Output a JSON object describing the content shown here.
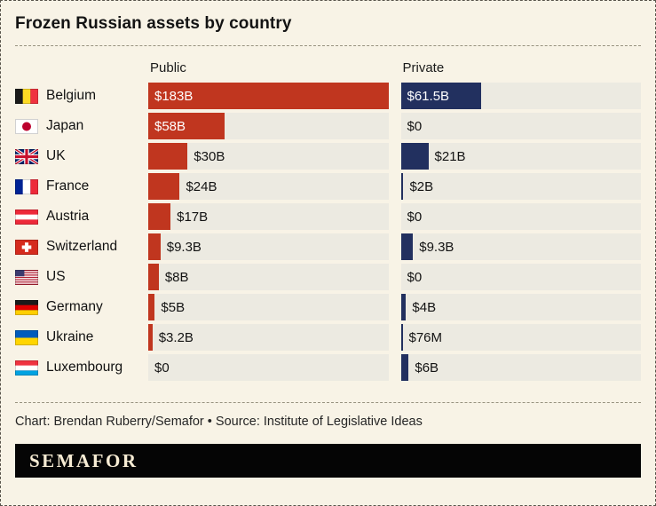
{
  "header": {
    "title": "Frozen Russian assets by country"
  },
  "chart_data": {
    "type": "bar",
    "orientation": "horizontal",
    "title": "Frozen Russian assets by country",
    "unit": "USD billions",
    "max_value_billions": 183,
    "columns": [
      {
        "key": "public",
        "label": "Public"
      },
      {
        "key": "private",
        "label": "Private"
      }
    ],
    "rows": [
      {
        "country": "Belgium",
        "flag_icon": "belgium-flag-icon",
        "public": {
          "value_billions": 183,
          "label": "$183B"
        },
        "private": {
          "value_billions": 61.5,
          "label": "$61.5B"
        }
      },
      {
        "country": "Japan",
        "flag_icon": "japan-flag-icon",
        "public": {
          "value_billions": 58,
          "label": "$58B"
        },
        "private": {
          "value_billions": 0,
          "label": "$0"
        }
      },
      {
        "country": "UK",
        "flag_icon": "uk-flag-icon",
        "public": {
          "value_billions": 30,
          "label": "$30B"
        },
        "private": {
          "value_billions": 21,
          "label": "$21B"
        }
      },
      {
        "country": "France",
        "flag_icon": "france-flag-icon",
        "public": {
          "value_billions": 24,
          "label": "$24B"
        },
        "private": {
          "value_billions": 2,
          "label": "$2B"
        }
      },
      {
        "country": "Austria",
        "flag_icon": "austria-flag-icon",
        "public": {
          "value_billions": 17,
          "label": "$17B"
        },
        "private": {
          "value_billions": 0,
          "label": "$0"
        }
      },
      {
        "country": "Switzerland",
        "flag_icon": "switzerland-flag-icon",
        "public": {
          "value_billions": 9.3,
          "label": "$9.3B"
        },
        "private": {
          "value_billions": 9.3,
          "label": "$9.3B"
        }
      },
      {
        "country": "US",
        "flag_icon": "us-flag-icon",
        "public": {
          "value_billions": 8,
          "label": "$8B"
        },
        "private": {
          "value_billions": 0,
          "label": "$0"
        }
      },
      {
        "country": "Germany",
        "flag_icon": "germany-flag-icon",
        "public": {
          "value_billions": 5,
          "label": "$5B"
        },
        "private": {
          "value_billions": 4,
          "label": "$4B"
        }
      },
      {
        "country": "Ukraine",
        "flag_icon": "ukraine-flag-icon",
        "public": {
          "value_billions": 3.2,
          "label": "$3.2B"
        },
        "private": {
          "value_billions": 0.076,
          "label": "$76M"
        }
      },
      {
        "country": "Luxembourg",
        "flag_icon": "luxembourg-flag-icon",
        "public": {
          "value_billions": 0,
          "label": "$0"
        },
        "private": {
          "value_billions": 6,
          "label": "$6B"
        }
      }
    ],
    "colors": {
      "public_bar": "#c0361f",
      "private_bar": "#22305f",
      "track": "#eceae1",
      "background": "#f8f3e6"
    },
    "legend_position": "column-headers",
    "grid": false
  },
  "footer": {
    "attribution": "Chart: Brendan Ruberry/Semafor • Source: Institute of Legislative Ideas"
  },
  "logo": {
    "text": "SEMAFOR"
  }
}
